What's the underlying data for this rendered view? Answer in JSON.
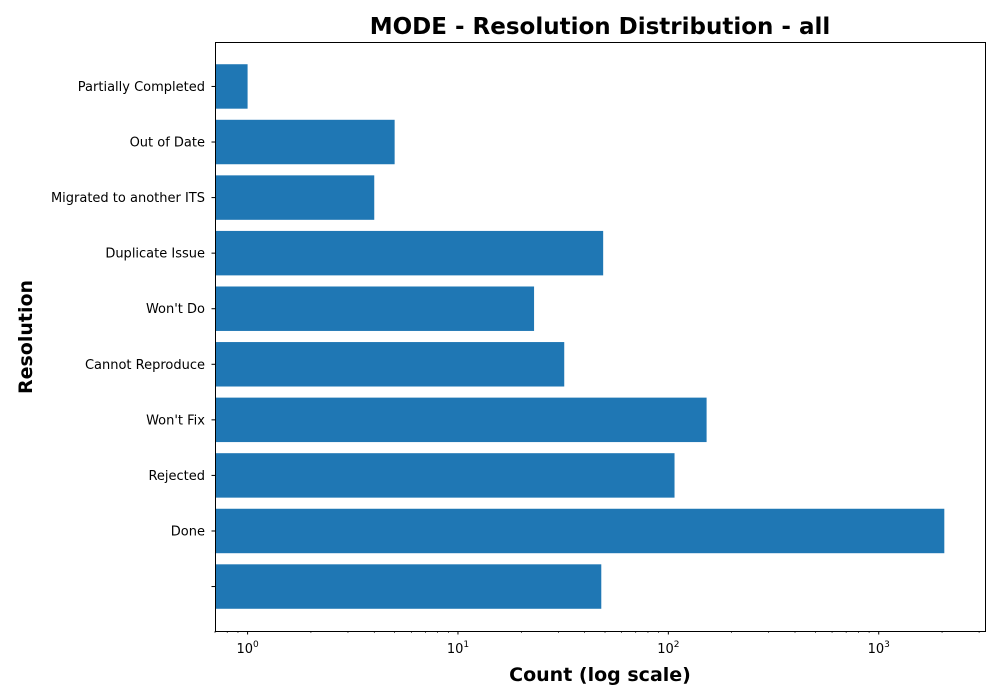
{
  "chart_data": {
    "type": "bar",
    "orientation": "horizontal",
    "title": "MODE - Resolution Distribution - all",
    "xlabel": "Count (log scale)",
    "ylabel": "Resolution",
    "x_scale": "log",
    "xlim": [
      0.7,
      3200
    ],
    "x_ticks": [
      1,
      10,
      100,
      1000
    ],
    "grid": false,
    "bar_color": "#1f77b4",
    "categories": [
      "",
      "Done",
      "Rejected",
      "Won't Fix",
      "Cannot Reproduce",
      "Won't Do",
      "Duplicate Issue",
      "Migrated to another ITS",
      "Out of Date",
      "Partially Completed"
    ],
    "values": [
      48,
      2050,
      107,
      152,
      32,
      23,
      49,
      4,
      5,
      1
    ]
  }
}
